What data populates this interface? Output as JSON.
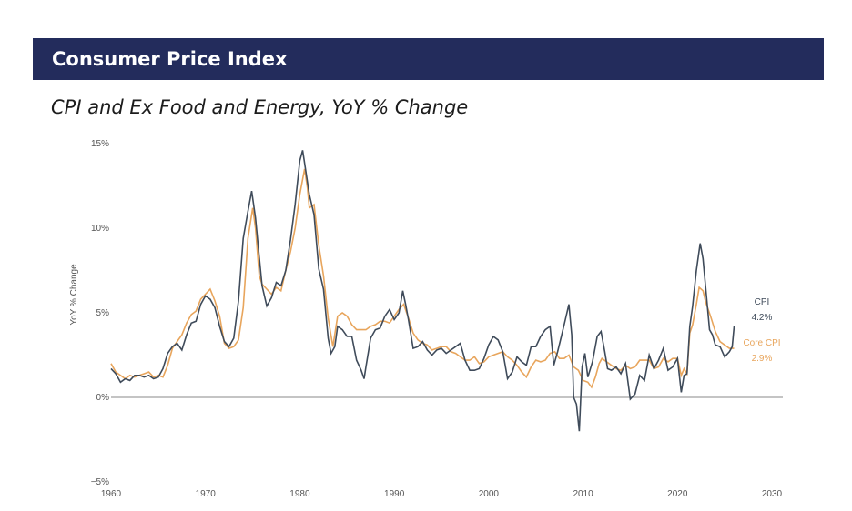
{
  "header": {
    "title": "Consumer Price Index"
  },
  "chart_title": "CPI and Ex Food and Energy, YoY % Change",
  "colors": {
    "banner": "#232c5c",
    "cpi": "#3f4b5a",
    "core": "#e8a55c",
    "zero_line": "#888888"
  },
  "chart_data": {
    "type": "line",
    "title": "CPI and Ex Food and Energy, YoY % Change",
    "xlabel": "",
    "ylabel": "YoY % Change",
    "xlim": [
      1960,
      2030
    ],
    "ylim": [
      -5,
      15
    ],
    "x_ticks": [
      "1960",
      "1970",
      "1980",
      "1990",
      "2000",
      "2010",
      "2020",
      "2030"
    ],
    "y_ticks": [
      {
        "value": 15,
        "label": "15%"
      },
      {
        "value": 10,
        "label": "10%"
      },
      {
        "value": 5,
        "label": "5%"
      },
      {
        "value": 0,
        "label": "0%"
      },
      {
        "value": -5,
        "label": "−5%"
      }
    ],
    "grid": false,
    "series": [
      {
        "name": "CPI",
        "end_value_label": "4.2%",
        "points": [
          [
            1960,
            1.7
          ],
          [
            1960.5,
            1.4
          ],
          [
            1961,
            0.9
          ],
          [
            1961.5,
            1.1
          ],
          [
            1962,
            1.0
          ],
          [
            1962.5,
            1.3
          ],
          [
            1963,
            1.3
          ],
          [
            1963.5,
            1.2
          ],
          [
            1964,
            1.3
          ],
          [
            1964.5,
            1.1
          ],
          [
            1965,
            1.2
          ],
          [
            1965.5,
            1.7
          ],
          [
            1966,
            2.6
          ],
          [
            1966.5,
            3.0
          ],
          [
            1967,
            3.2
          ],
          [
            1967.5,
            2.8
          ],
          [
            1968,
            3.7
          ],
          [
            1968.5,
            4.4
          ],
          [
            1969,
            4.5
          ],
          [
            1969.5,
            5.5
          ],
          [
            1970,
            6.0
          ],
          [
            1970.5,
            5.8
          ],
          [
            1971,
            5.3
          ],
          [
            1971.5,
            4.2
          ],
          [
            1972,
            3.3
          ],
          [
            1972.5,
            3.0
          ],
          [
            1973,
            3.5
          ],
          [
            1973.5,
            5.7
          ],
          [
            1974,
            9.4
          ],
          [
            1974.5,
            11.0
          ],
          [
            1974.9,
            12.2
          ],
          [
            1975.3,
            10.6
          ],
          [
            1975.7,
            8.3
          ],
          [
            1976,
            6.6
          ],
          [
            1976.5,
            5.4
          ],
          [
            1977,
            5.9
          ],
          [
            1977.5,
            6.8
          ],
          [
            1978,
            6.6
          ],
          [
            1978.5,
            7.5
          ],
          [
            1979,
            9.3
          ],
          [
            1979.5,
            11.4
          ],
          [
            1980,
            14.0
          ],
          [
            1980.3,
            14.6
          ],
          [
            1980.7,
            13.1
          ],
          [
            1981,
            12.0
          ],
          [
            1981.5,
            10.8
          ],
          [
            1982,
            7.6
          ],
          [
            1982.5,
            6.4
          ],
          [
            1983,
            3.5
          ],
          [
            1983.3,
            2.6
          ],
          [
            1983.7,
            3.0
          ],
          [
            1984,
            4.2
          ],
          [
            1984.5,
            4.0
          ],
          [
            1985,
            3.6
          ],
          [
            1985.5,
            3.6
          ],
          [
            1986,
            2.2
          ],
          [
            1986.5,
            1.6
          ],
          [
            1986.8,
            1.1
          ],
          [
            1987,
            1.8
          ],
          [
            1987.5,
            3.5
          ],
          [
            1988,
            4.0
          ],
          [
            1988.5,
            4.1
          ],
          [
            1989,
            4.8
          ],
          [
            1989.5,
            5.2
          ],
          [
            1990,
            4.6
          ],
          [
            1990.5,
            5.0
          ],
          [
            1990.9,
            6.3
          ],
          [
            1991.2,
            5.5
          ],
          [
            1991.5,
            4.6
          ],
          [
            1992,
            2.9
          ],
          [
            1992.5,
            3.0
          ],
          [
            1993,
            3.3
          ],
          [
            1993.5,
            2.8
          ],
          [
            1994,
            2.5
          ],
          [
            1994.5,
            2.8
          ],
          [
            1995,
            2.9
          ],
          [
            1995.5,
            2.6
          ],
          [
            1996,
            2.8
          ],
          [
            1996.5,
            3.0
          ],
          [
            1997,
            3.2
          ],
          [
            1997.5,
            2.2
          ],
          [
            1998,
            1.6
          ],
          [
            1998.5,
            1.6
          ],
          [
            1999,
            1.7
          ],
          [
            1999.5,
            2.3
          ],
          [
            2000,
            3.1
          ],
          [
            2000.5,
            3.6
          ],
          [
            2001,
            3.4
          ],
          [
            2001.5,
            2.7
          ],
          [
            2002,
            1.1
          ],
          [
            2002.5,
            1.5
          ],
          [
            2003,
            2.4
          ],
          [
            2003.5,
            2.1
          ],
          [
            2004,
            1.9
          ],
          [
            2004.5,
            3.0
          ],
          [
            2005,
            3.0
          ],
          [
            2005.5,
            3.6
          ],
          [
            2006,
            4.0
          ],
          [
            2006.5,
            4.2
          ],
          [
            2006.9,
            1.9
          ],
          [
            2007.3,
            2.7
          ],
          [
            2007.7,
            3.6
          ],
          [
            2008,
            4.3
          ],
          [
            2008.5,
            5.5
          ],
          [
            2008.8,
            3.7
          ],
          [
            2009,
            0.0
          ],
          [
            2009.3,
            -0.4
          ],
          [
            2009.6,
            -2.0
          ],
          [
            2009.9,
            1.8
          ],
          [
            2010.2,
            2.6
          ],
          [
            2010.5,
            1.2
          ],
          [
            2011,
            2.1
          ],
          [
            2011.5,
            3.6
          ],
          [
            2011.9,
            3.9
          ],
          [
            2012.3,
            2.7
          ],
          [
            2012.6,
            1.7
          ],
          [
            2013,
            1.6
          ],
          [
            2013.5,
            1.8
          ],
          [
            2014,
            1.4
          ],
          [
            2014.5,
            2.0
          ],
          [
            2015,
            -0.1
          ],
          [
            2015.5,
            0.2
          ],
          [
            2016,
            1.3
          ],
          [
            2016.5,
            1.0
          ],
          [
            2017,
            2.5
          ],
          [
            2017.5,
            1.7
          ],
          [
            2018,
            2.2
          ],
          [
            2018.5,
            2.9
          ],
          [
            2019,
            1.6
          ],
          [
            2019.5,
            1.8
          ],
          [
            2020,
            2.3
          ],
          [
            2020.4,
            0.3
          ],
          [
            2020.7,
            1.3
          ],
          [
            2021,
            1.4
          ],
          [
            2021.3,
            4.2
          ],
          [
            2021.6,
            5.4
          ],
          [
            2022,
            7.5
          ],
          [
            2022.4,
            9.1
          ],
          [
            2022.7,
            8.2
          ],
          [
            2023,
            6.4
          ],
          [
            2023.4,
            4.0
          ],
          [
            2023.7,
            3.7
          ],
          [
            2024,
            3.1
          ],
          [
            2024.5,
            3.0
          ],
          [
            2025,
            2.4
          ],
          [
            2025.5,
            2.7
          ],
          [
            2025.8,
            3.0
          ],
          [
            2026,
            4.2
          ]
        ]
      },
      {
        "name": "Core CPI",
        "end_value_label": "2.9%",
        "points": [
          [
            1960,
            2.0
          ],
          [
            1960.5,
            1.5
          ],
          [
            1961,
            1.3
          ],
          [
            1961.5,
            1.1
          ],
          [
            1962,
            1.3
          ],
          [
            1962.5,
            1.2
          ],
          [
            1963,
            1.3
          ],
          [
            1963.5,
            1.4
          ],
          [
            1964,
            1.5
          ],
          [
            1964.5,
            1.2
          ],
          [
            1965,
            1.3
          ],
          [
            1965.5,
            1.2
          ],
          [
            1966,
            1.9
          ],
          [
            1966.5,
            2.9
          ],
          [
            1967,
            3.3
          ],
          [
            1967.5,
            3.7
          ],
          [
            1968,
            4.4
          ],
          [
            1968.5,
            4.9
          ],
          [
            1969,
            5.1
          ],
          [
            1969.5,
            5.8
          ],
          [
            1970,
            6.1
          ],
          [
            1970.5,
            6.4
          ],
          [
            1971,
            5.7
          ],
          [
            1971.5,
            4.8
          ],
          [
            1972,
            3.2
          ],
          [
            1972.5,
            2.9
          ],
          [
            1973,
            3.0
          ],
          [
            1973.5,
            3.4
          ],
          [
            1974,
            5.3
          ],
          [
            1974.5,
            9.4
          ],
          [
            1975,
            11.2
          ],
          [
            1975.3,
            10.0
          ],
          [
            1975.7,
            7.2
          ],
          [
            1976,
            6.7
          ],
          [
            1976.5,
            6.4
          ],
          [
            1977,
            6.1
          ],
          [
            1977.5,
            6.5
          ],
          [
            1978,
            6.3
          ],
          [
            1978.5,
            7.5
          ],
          [
            1979,
            8.6
          ],
          [
            1979.5,
            10.0
          ],
          [
            1980,
            12.0
          ],
          [
            1980.5,
            13.5
          ],
          [
            1980.8,
            12.4
          ],
          [
            1981,
            11.2
          ],
          [
            1981.5,
            11.4
          ],
          [
            1982,
            9.0
          ],
          [
            1982.5,
            7.2
          ],
          [
            1983,
            4.7
          ],
          [
            1983.5,
            3.0
          ],
          [
            1984,
            4.8
          ],
          [
            1984.5,
            5.0
          ],
          [
            1985,
            4.8
          ],
          [
            1985.5,
            4.3
          ],
          [
            1986,
            4.0
          ],
          [
            1986.5,
            4.0
          ],
          [
            1987,
            4.0
          ],
          [
            1987.5,
            4.2
          ],
          [
            1988,
            4.3
          ],
          [
            1988.5,
            4.5
          ],
          [
            1989,
            4.5
          ],
          [
            1989.5,
            4.4
          ],
          [
            1990,
            4.8
          ],
          [
            1990.5,
            5.2
          ],
          [
            1991,
            5.5
          ],
          [
            1991.5,
            4.7
          ],
          [
            1992,
            3.8
          ],
          [
            1992.5,
            3.4
          ],
          [
            1993,
            3.2
          ],
          [
            1993.5,
            3.1
          ],
          [
            1994,
            2.8
          ],
          [
            1994.5,
            2.9
          ],
          [
            1995,
            3.0
          ],
          [
            1995.5,
            3.0
          ],
          [
            1996,
            2.7
          ],
          [
            1996.5,
            2.6
          ],
          [
            1997,
            2.4
          ],
          [
            1997.5,
            2.2
          ],
          [
            1998,
            2.2
          ],
          [
            1998.5,
            2.4
          ],
          [
            1999,
            2.0
          ],
          [
            1999.5,
            2.1
          ],
          [
            2000,
            2.4
          ],
          [
            2000.5,
            2.5
          ],
          [
            2001,
            2.6
          ],
          [
            2001.5,
            2.7
          ],
          [
            2002,
            2.4
          ],
          [
            2002.5,
            2.2
          ],
          [
            2003,
            1.9
          ],
          [
            2003.5,
            1.5
          ],
          [
            2004,
            1.2
          ],
          [
            2004.5,
            1.8
          ],
          [
            2005,
            2.2
          ],
          [
            2005.5,
            2.1
          ],
          [
            2006,
            2.2
          ],
          [
            2006.5,
            2.6
          ],
          [
            2007,
            2.7
          ],
          [
            2007.5,
            2.3
          ],
          [
            2008,
            2.3
          ],
          [
            2008.5,
            2.5
          ],
          [
            2009,
            1.8
          ],
          [
            2009.5,
            1.6
          ],
          [
            2010,
            1.0
          ],
          [
            2010.5,
            0.9
          ],
          [
            2010.9,
            0.6
          ],
          [
            2011.3,
            1.2
          ],
          [
            2011.7,
            2.0
          ],
          [
            2012,
            2.3
          ],
          [
            2012.5,
            2.1
          ],
          [
            2013,
            1.9
          ],
          [
            2013.5,
            1.7
          ],
          [
            2014,
            1.6
          ],
          [
            2014.5,
            1.9
          ],
          [
            2015,
            1.7
          ],
          [
            2015.5,
            1.8
          ],
          [
            2016,
            2.2
          ],
          [
            2016.5,
            2.2
          ],
          [
            2017,
            2.2
          ],
          [
            2017.5,
            1.7
          ],
          [
            2018,
            1.8
          ],
          [
            2018.5,
            2.3
          ],
          [
            2019,
            2.1
          ],
          [
            2019.5,
            2.3
          ],
          [
            2020,
            2.3
          ],
          [
            2020.4,
            1.3
          ],
          [
            2020.7,
            1.7
          ],
          [
            2021,
            1.4
          ],
          [
            2021.3,
            3.8
          ],
          [
            2021.6,
            4.3
          ],
          [
            2022,
            5.5
          ],
          [
            2022.3,
            6.5
          ],
          [
            2022.7,
            6.3
          ],
          [
            2023,
            5.6
          ],
          [
            2023.5,
            4.8
          ],
          [
            2024,
            3.9
          ],
          [
            2024.5,
            3.3
          ],
          [
            2025,
            3.1
          ],
          [
            2025.5,
            2.9
          ],
          [
            2026,
            2.9
          ]
        ]
      }
    ]
  }
}
